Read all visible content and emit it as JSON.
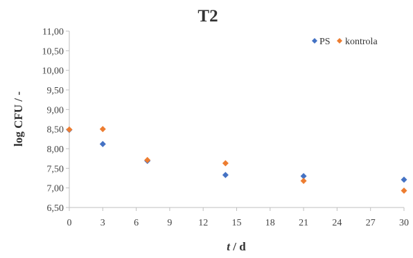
{
  "chart_data": {
    "type": "scatter",
    "title": "T2",
    "xlabel_italic": "t",
    "xlabel_rest": " / d",
    "ylabel": "log CFU / -",
    "xlim": [
      0,
      30
    ],
    "ylim": [
      6.5,
      11.0
    ],
    "x_ticks": [
      0,
      3,
      6,
      9,
      12,
      15,
      18,
      21,
      24,
      27,
      30
    ],
    "y_ticks": [
      6.5,
      7.0,
      7.5,
      8.0,
      8.5,
      9.0,
      9.5,
      10.0,
      10.5,
      11.0
    ],
    "y_tick_labels": [
      "6,50",
      "7,00",
      "7,50",
      "8,00",
      "8,50",
      "9,00",
      "9,50",
      "10,00",
      "10,50",
      "11,00"
    ],
    "grid": false,
    "legend_position": "top-right",
    "series": [
      {
        "name": "PS",
        "color": "#4472C4",
        "marker": "diamond",
        "x": [
          0,
          3,
          7,
          14,
          21,
          30
        ],
        "y": [
          8.48,
          8.12,
          7.69,
          7.33,
          7.3,
          7.21
        ]
      },
      {
        "name": "kontrola",
        "color": "#ED7D31",
        "marker": "diamond",
        "x": [
          0,
          3,
          7,
          14,
          21,
          30
        ],
        "y": [
          8.49,
          8.5,
          7.71,
          7.63,
          7.18,
          6.93
        ]
      }
    ]
  }
}
